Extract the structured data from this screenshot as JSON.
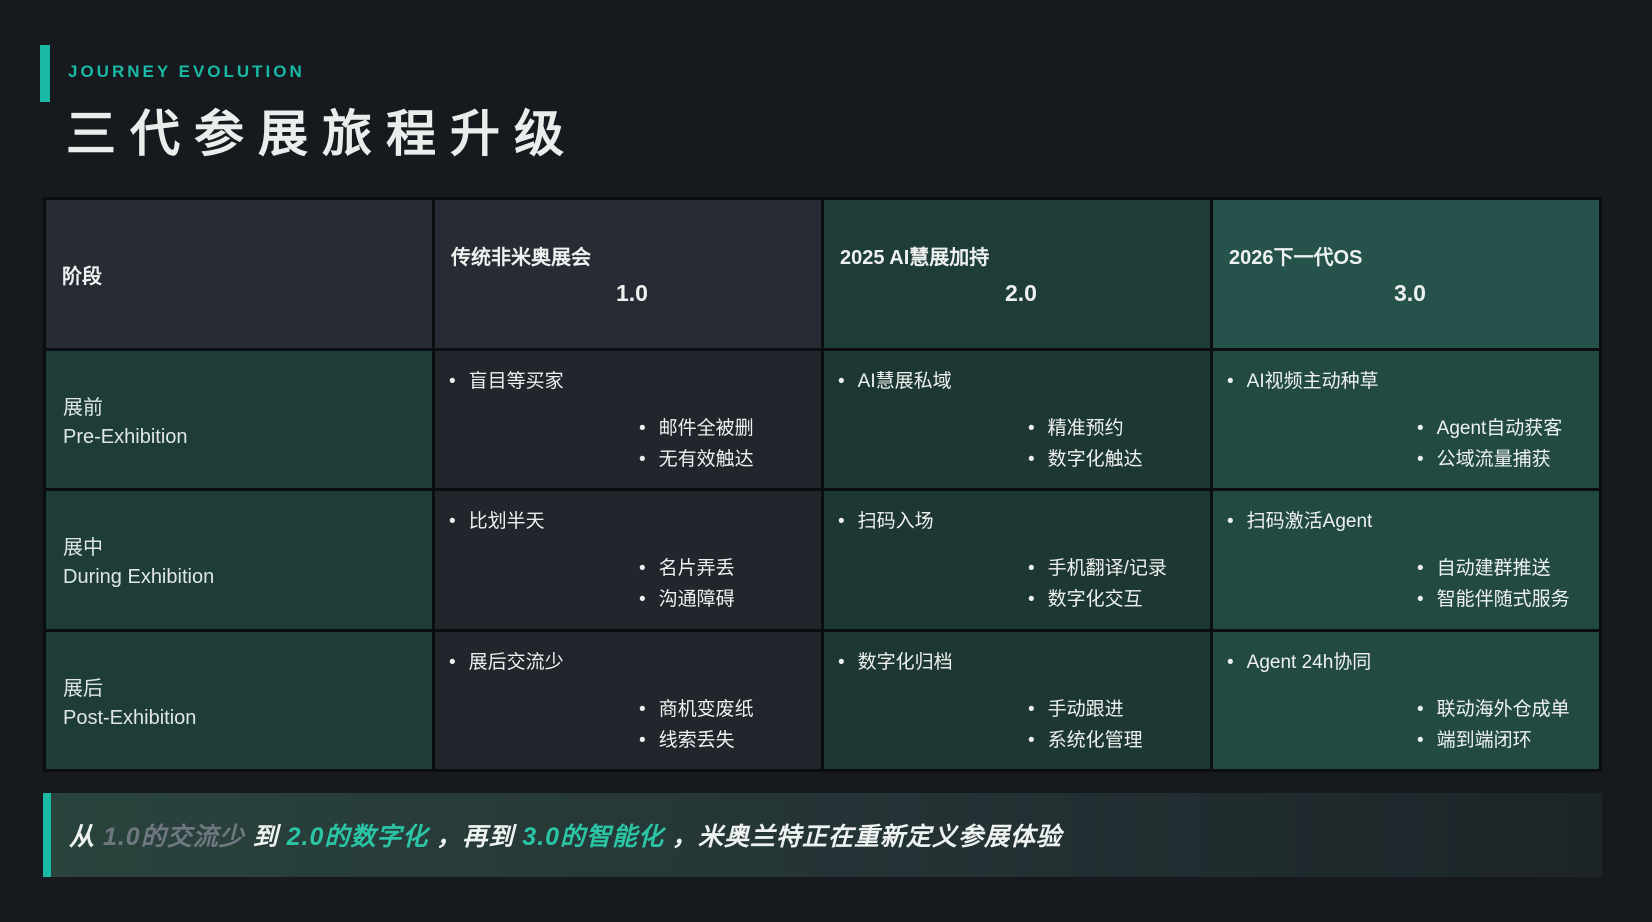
{
  "header": {
    "eyebrow": "JOURNEY EVOLUTION",
    "title": "三代参展旅程升级"
  },
  "colors": {
    "page_bg": "#16191d",
    "border": "#0b0d10",
    "accent": "#19b9a6",
    "teal_text": "#2bc4a5",
    "muted_text": "#6f7880",
    "text": "#e9edec",
    "header_dark": "#272b33",
    "header_teal": "#1e3c38",
    "header_teal_bright": "#25524a",
    "cell_dark": "#21252c",
    "cell_teal": "#1d3733",
    "cell_teal_bright": "#224a43",
    "stage_teal": "#1e3d38",
    "footer_grad_a": "#2a433d",
    "footer_grad_b": "#1d2428"
  },
  "table": {
    "stage_header": "阶段",
    "columns": [
      {
        "name": "传统非米奥展会",
        "version": "1.0"
      },
      {
        "name": "2025 AI慧展加持",
        "version": "2.0"
      },
      {
        "name": "2026下一代OS",
        "version": "3.0"
      }
    ],
    "rows": [
      {
        "stage_zh": "展前",
        "stage_en": "Pre-Exhibition",
        "cells": [
          {
            "main": "盲目等买家",
            "subs": [
              "邮件全被删",
              "无有效触达"
            ]
          },
          {
            "main": "AI慧展私域",
            "subs": [
              "精准预约",
              "数字化触达"
            ]
          },
          {
            "main": "AI视频主动种草",
            "subs": [
              "Agent自动获客",
              "公域流量捕获"
            ]
          }
        ]
      },
      {
        "stage_zh": "展中",
        "stage_en": "During Exhibition",
        "cells": [
          {
            "main": "比划半天",
            "subs": [
              "名片弄丢",
              "沟通障碍"
            ]
          },
          {
            "main": "扫码入场",
            "subs": [
              "手机翻译/记录",
              "数字化交互"
            ]
          },
          {
            "main": "扫码激活Agent",
            "subs": [
              "自动建群推送",
              "智能伴随式服务"
            ]
          }
        ]
      },
      {
        "stage_zh": "展后",
        "stage_en": "Post-Exhibition",
        "cells": [
          {
            "main": "展后交流少",
            "subs": [
              "商机变废纸",
              "线索丢失"
            ]
          },
          {
            "main": "数字化归档",
            "subs": [
              "手动跟进",
              "系统化管理"
            ]
          },
          {
            "main": "Agent 24h协同",
            "subs": [
              "联动海外仓成单",
              "端到端闭环"
            ]
          }
        ]
      }
    ]
  },
  "footer": {
    "segments": [
      {
        "text": "从 ",
        "style": "white"
      },
      {
        "text": "1.0的交流少",
        "style": "muted"
      },
      {
        "text": " 到 ",
        "style": "white"
      },
      {
        "text": "2.0的数字化",
        "style": "teal"
      },
      {
        "text": "，再到 ",
        "style": "white"
      },
      {
        "text": "3.0的智能化",
        "style": "teal"
      },
      {
        "text": "，米奥兰特正在重新定义参展体验",
        "style": "white"
      }
    ]
  }
}
